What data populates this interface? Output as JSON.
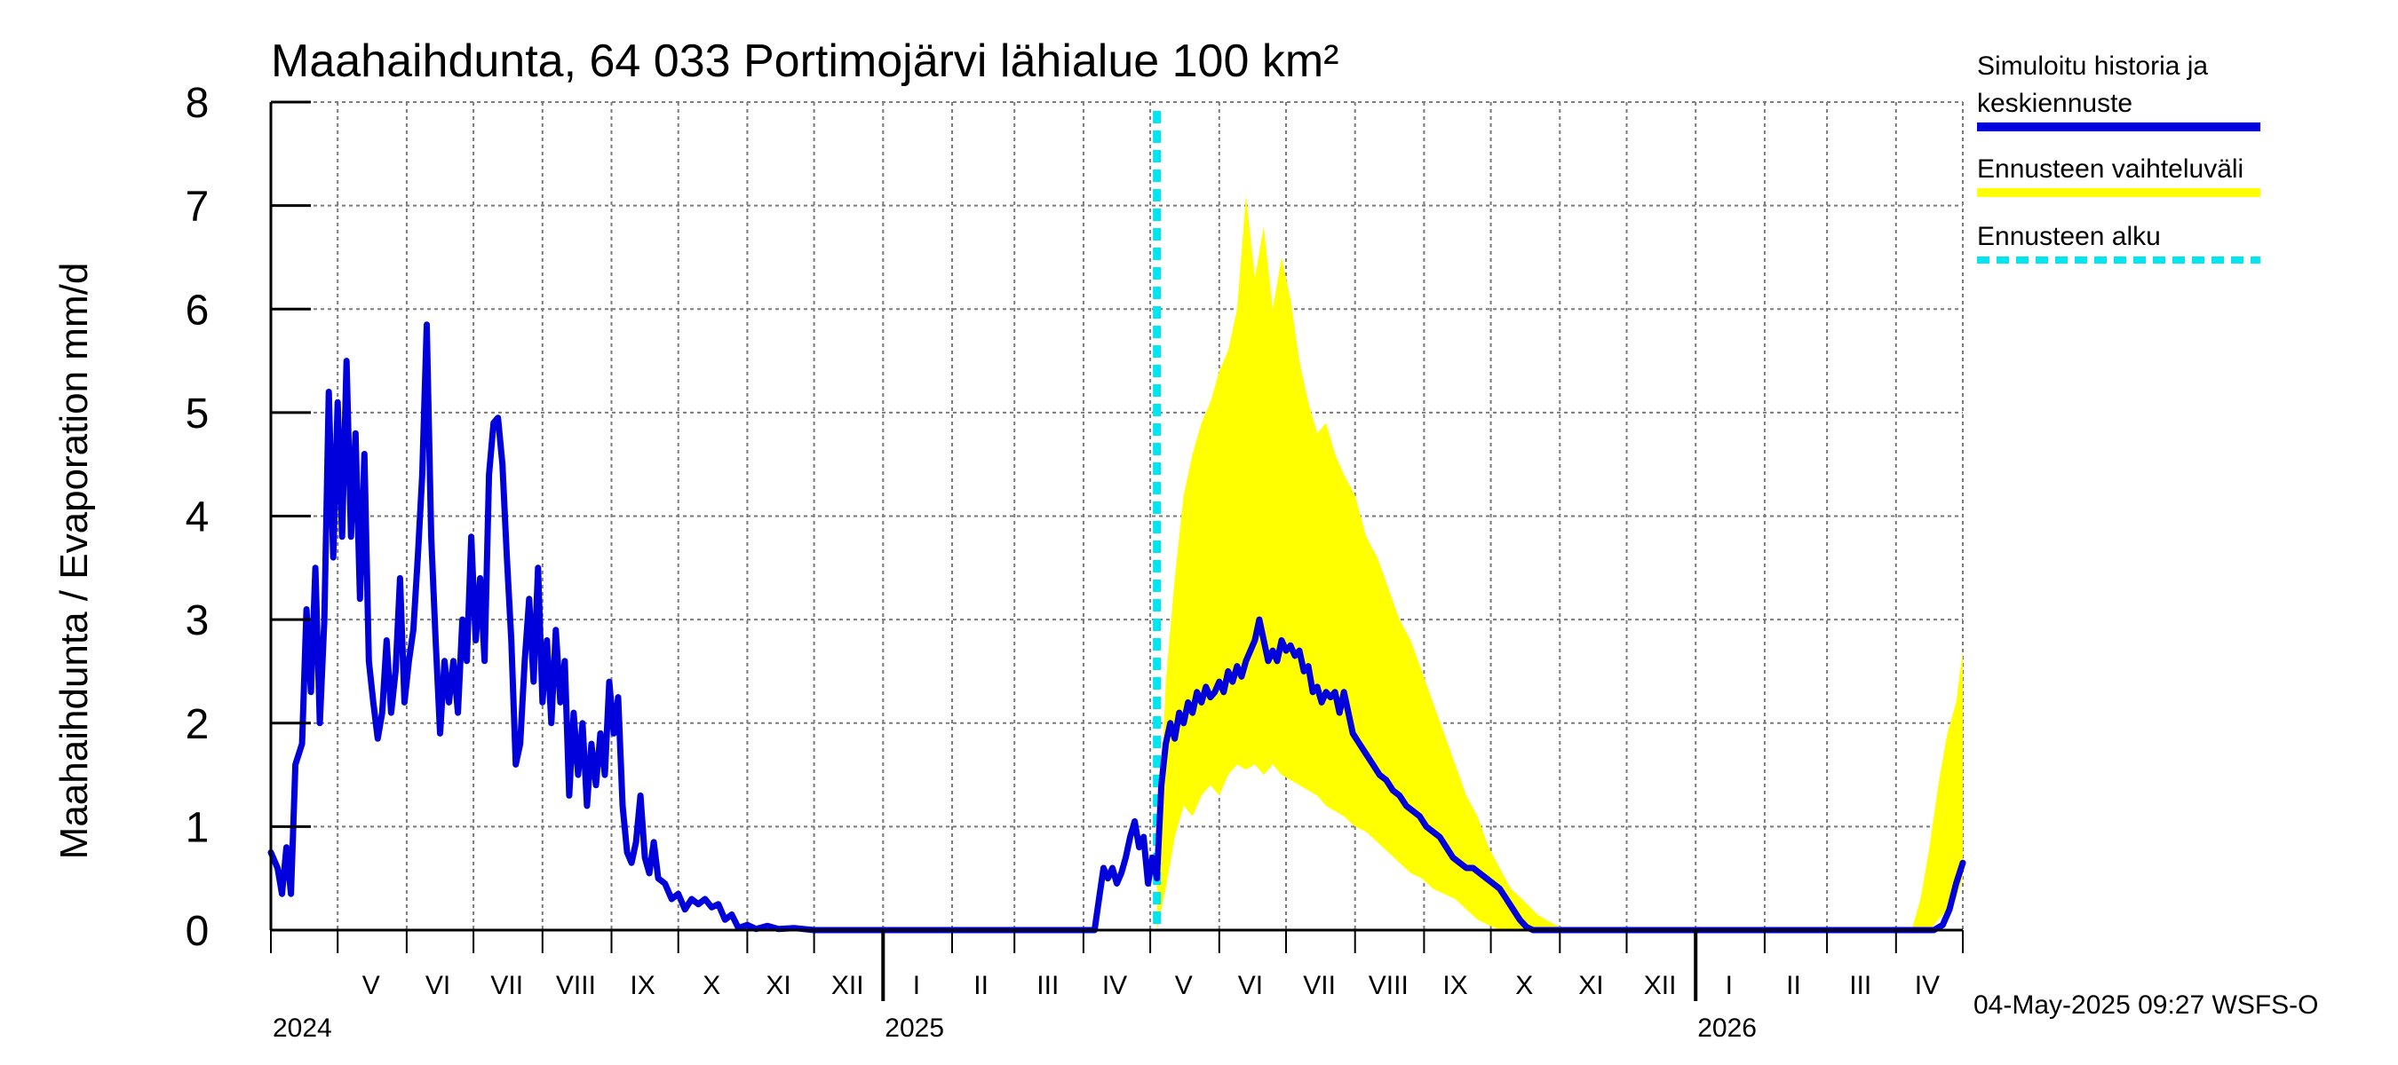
{
  "chart_data": {
    "type": "area",
    "title": "Maahaihdunta, 64 033 Portimojärvi lähialue 100 km²",
    "ylabel": "Maahaihdunta / Evaporation   mm/d",
    "ylim": [
      0,
      8
    ],
    "yticks": [
      "0",
      "1",
      "2",
      "3",
      "4",
      "5",
      "6",
      "7",
      "8"
    ],
    "xlim": [
      "2024-04-01",
      "2026-05-01"
    ],
    "month_labels": [
      "V",
      "VI",
      "VII",
      "VIII",
      "IX",
      "X",
      "XI",
      "XII",
      "I",
      "II",
      "III",
      "IV",
      "V",
      "VI",
      "VII",
      "VIII",
      "IX",
      "X",
      "XI",
      "XII",
      "I",
      "II",
      "III",
      "IV"
    ],
    "month_label_dates": [
      "2024-05-16",
      "2024-06-15",
      "2024-07-16",
      "2024-08-16",
      "2024-09-15",
      "2024-10-16",
      "2024-11-15",
      "2024-12-16",
      "2025-01-16",
      "2025-02-14",
      "2025-03-16",
      "2025-04-15",
      "2025-05-16",
      "2025-06-15",
      "2025-07-16",
      "2025-08-16",
      "2025-09-15",
      "2025-10-16",
      "2025-11-15",
      "2025-12-16",
      "2026-01-16",
      "2026-02-14",
      "2026-03-16",
      "2026-04-15"
    ],
    "year_labels": [
      {
        "label": "2024",
        "date": "2024-04-01"
      },
      {
        "label": "2025",
        "date": "2025-01-01"
      },
      {
        "label": "2026",
        "date": "2026-01-01"
      }
    ],
    "forecast_start": "2025-05-04",
    "series": [
      {
        "name": "Simuloitu historia ja keskiennuste",
        "color": "#0000dd",
        "points": [
          [
            "2024-04-01",
            0.75
          ],
          [
            "2024-04-04",
            0.6
          ],
          [
            "2024-04-06",
            0.35
          ],
          [
            "2024-04-08",
            0.8
          ],
          [
            "2024-04-10",
            0.35
          ],
          [
            "2024-04-12",
            1.6
          ],
          [
            "2024-04-15",
            1.8
          ],
          [
            "2024-04-17",
            3.1
          ],
          [
            "2024-04-19",
            2.3
          ],
          [
            "2024-04-21",
            3.5
          ],
          [
            "2024-04-23",
            2.0
          ],
          [
            "2024-04-25",
            3.0
          ],
          [
            "2024-04-27",
            5.2
          ],
          [
            "2024-04-29",
            3.6
          ],
          [
            "2024-05-01",
            5.1
          ],
          [
            "2024-05-03",
            3.8
          ],
          [
            "2024-05-05",
            5.5
          ],
          [
            "2024-05-07",
            3.8
          ],
          [
            "2024-05-09",
            4.8
          ],
          [
            "2024-05-11",
            3.2
          ],
          [
            "2024-05-13",
            4.6
          ],
          [
            "2024-05-15",
            2.6
          ],
          [
            "2024-05-17",
            2.2
          ],
          [
            "2024-05-19",
            1.85
          ],
          [
            "2024-05-21",
            2.1
          ],
          [
            "2024-05-23",
            2.8
          ],
          [
            "2024-05-25",
            2.1
          ],
          [
            "2024-05-27",
            2.5
          ],
          [
            "2024-05-29",
            3.4
          ],
          [
            "2024-05-31",
            2.2
          ],
          [
            "2024-06-02",
            2.6
          ],
          [
            "2024-06-04",
            2.9
          ],
          [
            "2024-06-06",
            3.6
          ],
          [
            "2024-06-08",
            4.4
          ],
          [
            "2024-06-10",
            5.85
          ],
          [
            "2024-06-12",
            3.8
          ],
          [
            "2024-06-14",
            2.8
          ],
          [
            "2024-06-16",
            1.9
          ],
          [
            "2024-06-18",
            2.6
          ],
          [
            "2024-06-20",
            2.2
          ],
          [
            "2024-06-22",
            2.6
          ],
          [
            "2024-06-24",
            2.1
          ],
          [
            "2024-06-26",
            3.0
          ],
          [
            "2024-06-28",
            2.6
          ],
          [
            "2024-06-30",
            3.8
          ],
          [
            "2024-07-02",
            2.8
          ],
          [
            "2024-07-04",
            3.4
          ],
          [
            "2024-07-06",
            2.6
          ],
          [
            "2024-07-08",
            4.4
          ],
          [
            "2024-07-10",
            4.9
          ],
          [
            "2024-07-12",
            4.95
          ],
          [
            "2024-07-14",
            4.5
          ],
          [
            "2024-07-16",
            3.6
          ],
          [
            "2024-07-18",
            2.8
          ],
          [
            "2024-07-20",
            1.6
          ],
          [
            "2024-07-22",
            1.8
          ],
          [
            "2024-07-24",
            2.6
          ],
          [
            "2024-07-26",
            3.2
          ],
          [
            "2024-07-28",
            2.4
          ],
          [
            "2024-07-30",
            3.5
          ],
          [
            "2024-08-01",
            2.2
          ],
          [
            "2024-08-03",
            2.8
          ],
          [
            "2024-08-05",
            2.0
          ],
          [
            "2024-08-07",
            2.9
          ],
          [
            "2024-08-09",
            2.2
          ],
          [
            "2024-08-11",
            2.6
          ],
          [
            "2024-08-13",
            1.3
          ],
          [
            "2024-08-15",
            2.1
          ],
          [
            "2024-08-17",
            1.5
          ],
          [
            "2024-08-19",
            2.0
          ],
          [
            "2024-08-21",
            1.2
          ],
          [
            "2024-08-23",
            1.8
          ],
          [
            "2024-08-25",
            1.4
          ],
          [
            "2024-08-27",
            1.9
          ],
          [
            "2024-08-29",
            1.5
          ],
          [
            "2024-08-31",
            2.4
          ],
          [
            "2024-09-02",
            1.9
          ],
          [
            "2024-09-04",
            2.25
          ],
          [
            "2024-09-06",
            1.2
          ],
          [
            "2024-09-08",
            0.75
          ],
          [
            "2024-09-10",
            0.65
          ],
          [
            "2024-09-12",
            0.85
          ],
          [
            "2024-09-14",
            1.3
          ],
          [
            "2024-09-16",
            0.7
          ],
          [
            "2024-09-18",
            0.55
          ],
          [
            "2024-09-20",
            0.85
          ],
          [
            "2024-09-22",
            0.5
          ],
          [
            "2024-09-25",
            0.45
          ],
          [
            "2024-09-28",
            0.3
          ],
          [
            "2024-10-01",
            0.35
          ],
          [
            "2024-10-04",
            0.2
          ],
          [
            "2024-10-07",
            0.3
          ],
          [
            "2024-10-10",
            0.25
          ],
          [
            "2024-10-13",
            0.3
          ],
          [
            "2024-10-16",
            0.22
          ],
          [
            "2024-10-19",
            0.25
          ],
          [
            "2024-10-22",
            0.1
          ],
          [
            "2024-10-25",
            0.15
          ],
          [
            "2024-10-28",
            0.02
          ],
          [
            "2024-11-01",
            0.05
          ],
          [
            "2024-11-05",
            0.01
          ],
          [
            "2024-11-10",
            0.04
          ],
          [
            "2024-11-15",
            0.01
          ],
          [
            "2024-11-22",
            0.02
          ],
          [
            "2024-12-01",
            0.0
          ],
          [
            "2025-04-06",
            0.0
          ],
          [
            "2025-04-08",
            0.3
          ],
          [
            "2025-04-10",
            0.6
          ],
          [
            "2025-04-12",
            0.5
          ],
          [
            "2025-04-14",
            0.6
          ],
          [
            "2025-04-16",
            0.45
          ],
          [
            "2025-04-18",
            0.55
          ],
          [
            "2025-04-20",
            0.7
          ],
          [
            "2025-04-22",
            0.9
          ],
          [
            "2025-04-24",
            1.05
          ],
          [
            "2025-04-26",
            0.8
          ],
          [
            "2025-04-28",
            0.9
          ],
          [
            "2025-04-30",
            0.45
          ],
          [
            "2025-05-02",
            0.7
          ],
          [
            "2025-05-04",
            0.5
          ],
          [
            "2025-05-06",
            1.4
          ],
          [
            "2025-05-08",
            1.8
          ],
          [
            "2025-05-10",
            2.0
          ],
          [
            "2025-05-12",
            1.85
          ],
          [
            "2025-05-14",
            2.1
          ],
          [
            "2025-05-16",
            2.0
          ],
          [
            "2025-05-18",
            2.2
          ],
          [
            "2025-05-20",
            2.1
          ],
          [
            "2025-05-22",
            2.3
          ],
          [
            "2025-05-24",
            2.2
          ],
          [
            "2025-05-26",
            2.35
          ],
          [
            "2025-05-28",
            2.25
          ],
          [
            "2025-05-30",
            2.3
          ],
          [
            "2025-06-01",
            2.4
          ],
          [
            "2025-06-03",
            2.3
          ],
          [
            "2025-06-05",
            2.5
          ],
          [
            "2025-06-07",
            2.4
          ],
          [
            "2025-06-09",
            2.55
          ],
          [
            "2025-06-11",
            2.45
          ],
          [
            "2025-06-13",
            2.6
          ],
          [
            "2025-06-15",
            2.7
          ],
          [
            "2025-06-17",
            2.8
          ],
          [
            "2025-06-19",
            3.0
          ],
          [
            "2025-06-21",
            2.8
          ],
          [
            "2025-06-23",
            2.6
          ],
          [
            "2025-06-25",
            2.7
          ],
          [
            "2025-06-27",
            2.6
          ],
          [
            "2025-06-29",
            2.8
          ],
          [
            "2025-07-01",
            2.7
          ],
          [
            "2025-07-03",
            2.75
          ],
          [
            "2025-07-05",
            2.65
          ],
          [
            "2025-07-07",
            2.7
          ],
          [
            "2025-07-09",
            2.5
          ],
          [
            "2025-07-11",
            2.55
          ],
          [
            "2025-07-13",
            2.3
          ],
          [
            "2025-07-15",
            2.35
          ],
          [
            "2025-07-17",
            2.2
          ],
          [
            "2025-07-19",
            2.3
          ],
          [
            "2025-07-21",
            2.25
          ],
          [
            "2025-07-23",
            2.3
          ],
          [
            "2025-07-25",
            2.1
          ],
          [
            "2025-07-27",
            2.3
          ],
          [
            "2025-07-29",
            2.1
          ],
          [
            "2025-07-31",
            1.9
          ],
          [
            "2025-08-03",
            1.8
          ],
          [
            "2025-08-06",
            1.7
          ],
          [
            "2025-08-09",
            1.6
          ],
          [
            "2025-08-12",
            1.5
          ],
          [
            "2025-08-15",
            1.45
          ],
          [
            "2025-08-18",
            1.35
          ],
          [
            "2025-08-21",
            1.3
          ],
          [
            "2025-08-24",
            1.2
          ],
          [
            "2025-08-27",
            1.15
          ],
          [
            "2025-08-30",
            1.1
          ],
          [
            "2025-09-02",
            1.0
          ],
          [
            "2025-09-05",
            0.95
          ],
          [
            "2025-09-08",
            0.9
          ],
          [
            "2025-09-11",
            0.8
          ],
          [
            "2025-09-14",
            0.7
          ],
          [
            "2025-09-17",
            0.65
          ],
          [
            "2025-09-20",
            0.6
          ],
          [
            "2025-09-23",
            0.6
          ],
          [
            "2025-09-26",
            0.55
          ],
          [
            "2025-09-29",
            0.5
          ],
          [
            "2025-10-02",
            0.45
          ],
          [
            "2025-10-05",
            0.4
          ],
          [
            "2025-10-08",
            0.3
          ],
          [
            "2025-10-11",
            0.2
          ],
          [
            "2025-10-14",
            0.1
          ],
          [
            "2025-10-17",
            0.03
          ],
          [
            "2025-10-20",
            0.0
          ],
          [
            "2026-04-18",
            0.0
          ],
          [
            "2026-04-22",
            0.05
          ],
          [
            "2026-04-25",
            0.2
          ],
          [
            "2026-04-28",
            0.45
          ],
          [
            "2026-05-01",
            0.65
          ]
        ]
      }
    ],
    "band": {
      "name": "Ennusteen vaihteluväli",
      "color": "#ffff00",
      "points": [
        [
          "2025-05-04",
          0.0,
          0.5
        ],
        [
          "2025-05-08",
          0.4,
          2.4
        ],
        [
          "2025-05-12",
          0.9,
          3.4
        ],
        [
          "2025-05-16",
          1.2,
          4.2
        ],
        [
          "2025-05-20",
          1.1,
          4.6
        ],
        [
          "2025-05-24",
          1.3,
          4.9
        ],
        [
          "2025-05-28",
          1.4,
          5.1
        ],
        [
          "2025-06-01",
          1.3,
          5.4
        ],
        [
          "2025-06-05",
          1.5,
          5.6
        ],
        [
          "2025-06-09",
          1.6,
          6.0
        ],
        [
          "2025-06-13",
          1.55,
          7.1
        ],
        [
          "2025-06-17",
          1.6,
          6.3
        ],
        [
          "2025-06-21",
          1.5,
          6.8
        ],
        [
          "2025-06-25",
          1.6,
          6.0
        ],
        [
          "2025-06-29",
          1.5,
          6.5
        ],
        [
          "2025-07-03",
          1.45,
          6.1
        ],
        [
          "2025-07-07",
          1.4,
          5.5
        ],
        [
          "2025-07-11",
          1.35,
          5.1
        ],
        [
          "2025-07-15",
          1.3,
          4.8
        ],
        [
          "2025-07-19",
          1.2,
          4.9
        ],
        [
          "2025-07-23",
          1.15,
          4.6
        ],
        [
          "2025-07-27",
          1.1,
          4.4
        ],
        [
          "2025-08-01",
          1.0,
          4.2
        ],
        [
          "2025-08-06",
          0.95,
          3.8
        ],
        [
          "2025-08-11",
          0.85,
          3.6
        ],
        [
          "2025-08-16",
          0.75,
          3.3
        ],
        [
          "2025-08-21",
          0.65,
          3.0
        ],
        [
          "2025-08-26",
          0.55,
          2.8
        ],
        [
          "2025-08-31",
          0.5,
          2.5
        ],
        [
          "2025-09-05",
          0.4,
          2.2
        ],
        [
          "2025-09-10",
          0.35,
          1.9
        ],
        [
          "2025-09-15",
          0.3,
          1.6
        ],
        [
          "2025-09-20",
          0.2,
          1.3
        ],
        [
          "2025-09-25",
          0.1,
          1.1
        ],
        [
          "2025-09-30",
          0.05,
          0.8
        ],
        [
          "2025-10-05",
          0.0,
          0.6
        ],
        [
          "2025-10-10",
          0.0,
          0.4
        ],
        [
          "2025-10-15",
          0.0,
          0.3
        ],
        [
          "2025-10-22",
          0.0,
          0.15
        ],
        [
          "2025-10-30",
          0.0,
          0.05
        ],
        [
          "2025-11-05",
          0.0,
          0.0
        ],
        [
          "2026-04-08",
          0.0,
          0.0
        ],
        [
          "2026-04-12",
          0.0,
          0.3
        ],
        [
          "2026-04-16",
          0.0,
          0.8
        ],
        [
          "2026-04-20",
          0.1,
          1.4
        ],
        [
          "2026-04-24",
          0.2,
          1.9
        ],
        [
          "2026-04-28",
          0.3,
          2.2
        ],
        [
          "2026-05-01",
          0.5,
          2.7
        ]
      ]
    },
    "legend": {
      "position": "top-right",
      "entries": [
        {
          "label_lines": [
            "Simuloitu historia ja",
            "keskiennuste"
          ],
          "color": "#0000dd",
          "style": "solid"
        },
        {
          "label_lines": [
            "Ennusteen vaihteluväli"
          ],
          "color": "#ffff00",
          "style": "solid"
        },
        {
          "label_lines": [
            "Ennusteen alku"
          ],
          "color": "#00e5ee",
          "style": "dashed"
        }
      ]
    },
    "grid": true,
    "footer": "04-May-2025 09:27 WSFS-O"
  }
}
